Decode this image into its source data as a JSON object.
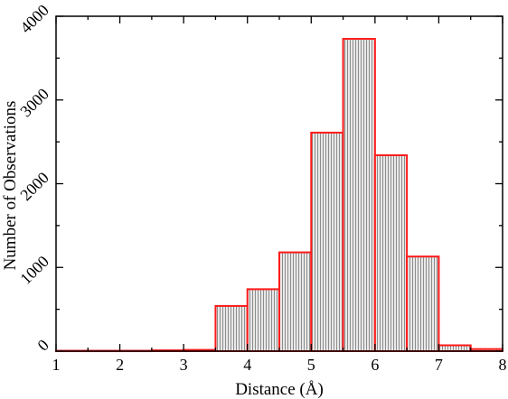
{
  "chart_data": {
    "type": "bar",
    "subtype": "histogram",
    "xlabel": "Distance  (Å)",
    "ylabel": "Number of Observations",
    "xlim": [
      1,
      8
    ],
    "ylim": [
      0,
      4000
    ],
    "xticks": [
      1,
      2,
      3,
      4,
      5,
      6,
      7,
      8
    ],
    "yticks": [
      0,
      1000,
      2000,
      3000,
      4000
    ],
    "bin_width": 0.5,
    "bins": [
      {
        "x0": 1.0,
        "x1": 1.5,
        "value": 5
      },
      {
        "x0": 1.5,
        "x1": 2.0,
        "value": 5
      },
      {
        "x0": 2.0,
        "x1": 2.5,
        "value": 5
      },
      {
        "x0": 2.5,
        "x1": 3.0,
        "value": 10
      },
      {
        "x0": 3.0,
        "x1": 3.5,
        "value": 15
      },
      {
        "x0": 3.5,
        "x1": 4.0,
        "value": 540
      },
      {
        "x0": 4.0,
        "x1": 4.5,
        "value": 740
      },
      {
        "x0": 4.5,
        "x1": 5.0,
        "value": 1180
      },
      {
        "x0": 5.0,
        "x1": 5.5,
        "value": 2610
      },
      {
        "x0": 5.5,
        "x1": 6.0,
        "value": 3730
      },
      {
        "x0": 6.0,
        "x1": 6.5,
        "value": 2340
      },
      {
        "x0": 6.5,
        "x1": 7.0,
        "value": 1130
      },
      {
        "x0": 7.0,
        "x1": 7.5,
        "value": 70
      },
      {
        "x0": 7.5,
        "x1": 8.0,
        "value": 25
      }
    ],
    "grid": false,
    "legend": "none",
    "colors": {
      "bar_edge": "#ff1a1a",
      "bar_fill": "#d9d9d9",
      "bar_hatch": "#8c8c8c",
      "axis": "#000000"
    }
  }
}
